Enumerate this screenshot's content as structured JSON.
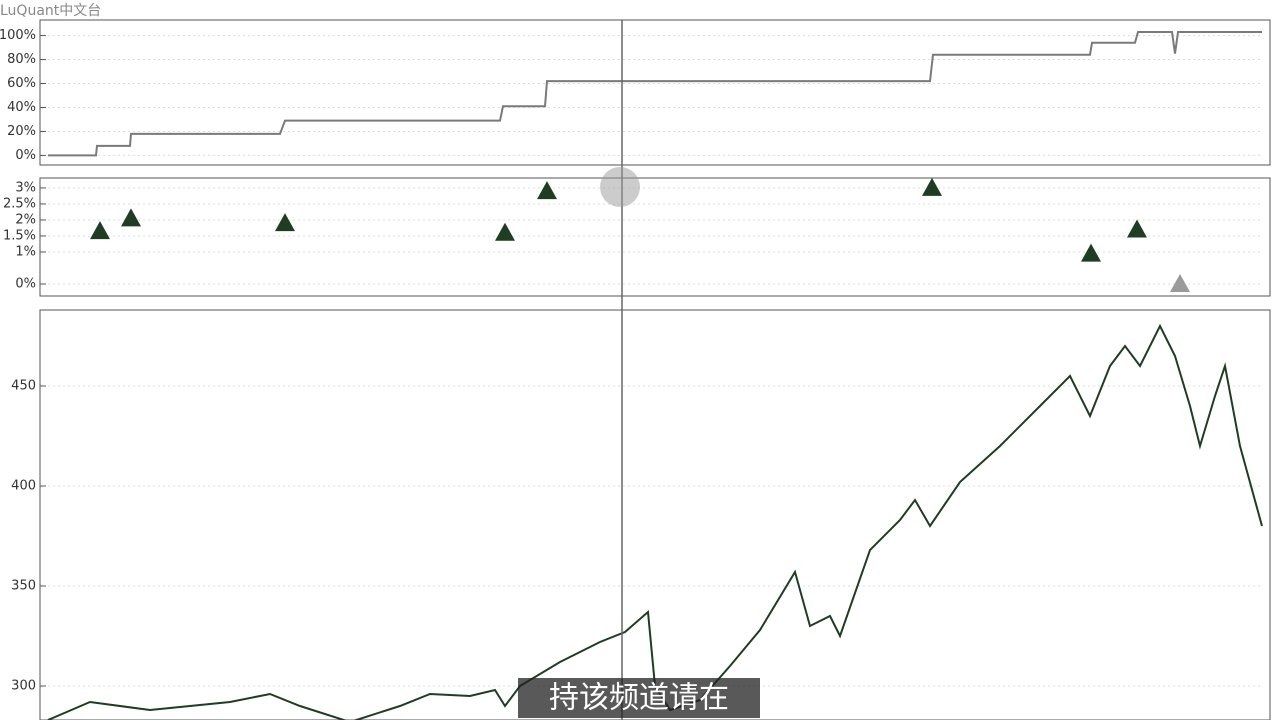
{
  "watermark": "LuQuant中文台",
  "subtitle": "持该频道请在",
  "chart_data": [
    {
      "type": "line",
      "color": "#7a7a7a",
      "x": [
        0,
        48,
        49,
        82,
        83,
        232,
        237,
        452,
        455,
        497,
        499,
        882,
        885,
        1042,
        1044,
        1087,
        1090,
        1124,
        1127,
        1130,
        1214
      ],
      "values": [
        0,
        0,
        8,
        8,
        18,
        18,
        29,
        29,
        41,
        41,
        62,
        62,
        84,
        84,
        94,
        94,
        103,
        103,
        85,
        103,
        103
      ],
      "xlim": [
        0,
        1214
      ],
      "ylim": [
        -8,
        113
      ],
      "yticks": [
        {
          "value": 100,
          "label": "100%"
        },
        {
          "value": 80,
          "label": "80%"
        },
        {
          "value": 60,
          "label": "60%"
        },
        {
          "value": 40,
          "label": "40%"
        },
        {
          "value": 20,
          "label": "20%"
        },
        {
          "value": 0,
          "label": "0%"
        }
      ],
      "grid": true
    },
    {
      "type": "scatter",
      "x": [
        52,
        83,
        237,
        457,
        499,
        884,
        1043,
        1089,
        1132
      ],
      "values": [
        1.65,
        2.05,
        1.9,
        1.6,
        2.9,
        3.0,
        0.95,
        1.7,
        0
      ],
      "colors": [
        "#1f3d22",
        "#1f3d22",
        "#1f3d22",
        "#1f3d22",
        "#1f3d22",
        "#1f3d22",
        "#1f3d22",
        "#1f3d22",
        "#9a9a9a"
      ],
      "xlim": [
        0,
        1214
      ],
      "ylim": [
        -0.375,
        3.31
      ],
      "yticks": [
        {
          "value": 3,
          "label": "3%"
        },
        {
          "value": 2.5,
          "label": "2.5%"
        },
        {
          "value": 2,
          "label": "2%"
        },
        {
          "value": 1.5,
          "label": "1.5%"
        },
        {
          "value": 1,
          "label": "1%"
        },
        {
          "value": 0,
          "label": "0%"
        }
      ],
      "grid": true
    },
    {
      "type": "line",
      "color": "#1f3d22",
      "x": [
        0,
        42,
        102,
        182,
        222,
        252,
        302,
        352,
        382,
        422,
        447,
        457,
        472,
        512,
        552,
        577,
        600,
        607,
        622,
        652,
        682,
        712,
        747,
        762,
        782,
        792,
        822,
        852,
        867,
        882,
        912,
        952,
        992,
        1022,
        1042,
        1062,
        1077,
        1092,
        1112,
        1127,
        1142,
        1152,
        1167,
        1177,
        1192,
        1214
      ],
      "values": [
        283,
        292,
        288,
        292,
        296,
        290,
        282,
        290,
        296,
        295,
        298,
        290,
        300,
        312,
        322,
        327,
        337,
        300,
        288,
        293,
        310,
        328,
        357,
        330,
        335,
        325,
        368,
        383,
        393,
        380,
        402,
        420,
        440,
        455,
        435,
        460,
        470,
        460,
        480,
        465,
        440,
        420,
        445,
        460,
        420,
        380
      ],
      "xlim": [
        0,
        1214
      ],
      "ylim": [
        283,
        488
      ],
      "yticks": [
        300,
        350,
        400,
        450
      ],
      "grid": true
    }
  ]
}
